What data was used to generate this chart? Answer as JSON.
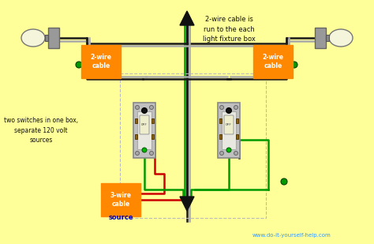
{
  "bg_color": "#FFFF99",
  "title_text": "2-wire cable is\nrun to the each\nlight fixture box",
  "label_left_switch": "two switches in one box,\nseparate 120 volt\nsources",
  "label_3wire": "3-wire\ncable",
  "label_2wire_left": "2-wire\ncable",
  "label_2wire_right": "2-wire\ncable",
  "source_text": "source",
  "orange_bg": "#FF8800",
  "website": "www.do-it-yourself-help.com",
  "wire_black": "#1a1a1a",
  "wire_gray": "#AAAAAA",
  "wire_green": "#009900",
  "wire_red": "#CC0000",
  "switch_plate": "#C0C0C0",
  "switch_body": "#E8E8E0",
  "switch_toggle": "#EEEECC",
  "lamp_bulb": "#F5F5DC",
  "lamp_socket": "#888888",
  "lamp_box": "#999999"
}
